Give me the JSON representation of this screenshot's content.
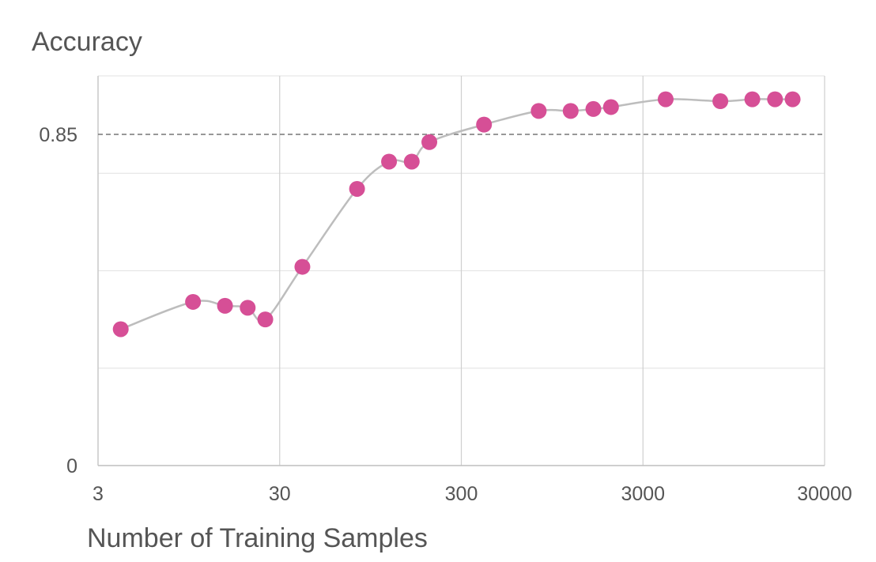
{
  "chart_data": {
    "type": "line",
    "title": "",
    "ylabel": "Accuracy",
    "xlabel": "Number of Training Samples",
    "x_scale": "log",
    "xlim": [
      3,
      30000
    ],
    "ylim": [
      0,
      1
    ],
    "x_ticks": [
      {
        "value": 3,
        "label": "3"
      },
      {
        "value": 30,
        "label": "30"
      },
      {
        "value": 300,
        "label": "300"
      },
      {
        "value": 3000,
        "label": "3000"
      },
      {
        "value": 30000,
        "label": "30000"
      }
    ],
    "y_ticks": [
      {
        "value": 0,
        "label": "0"
      },
      {
        "value": 0.85,
        "label": "0.85"
      }
    ],
    "y_gridlines": [
      0.25,
      0.5,
      0.75,
      1.0
    ],
    "reference_line": {
      "y": 0.85,
      "style": "dashed"
    },
    "grid": true,
    "series": [
      {
        "color": "#d64f96",
        "line_color": "#bdbdbd",
        "points": [
          {
            "x": 4,
            "y": 0.35
          },
          {
            "x": 10,
            "y": 0.42
          },
          {
            "x": 15,
            "y": 0.41
          },
          {
            "x": 20,
            "y": 0.405
          },
          {
            "x": 25,
            "y": 0.375
          },
          {
            "x": 40,
            "y": 0.51
          },
          {
            "x": 80,
            "y": 0.71
          },
          {
            "x": 120,
            "y": 0.78
          },
          {
            "x": 160,
            "y": 0.78
          },
          {
            "x": 200,
            "y": 0.83
          },
          {
            "x": 400,
            "y": 0.875
          },
          {
            "x": 800,
            "y": 0.91
          },
          {
            "x": 1200,
            "y": 0.91
          },
          {
            "x": 1600,
            "y": 0.915
          },
          {
            "x": 2000,
            "y": 0.92
          },
          {
            "x": 4000,
            "y": 0.94
          },
          {
            "x": 8000,
            "y": 0.935
          },
          {
            "x": 12000,
            "y": 0.94
          },
          {
            "x": 16000,
            "y": 0.94
          },
          {
            "x": 20000,
            "y": 0.94
          }
        ]
      }
    ]
  }
}
